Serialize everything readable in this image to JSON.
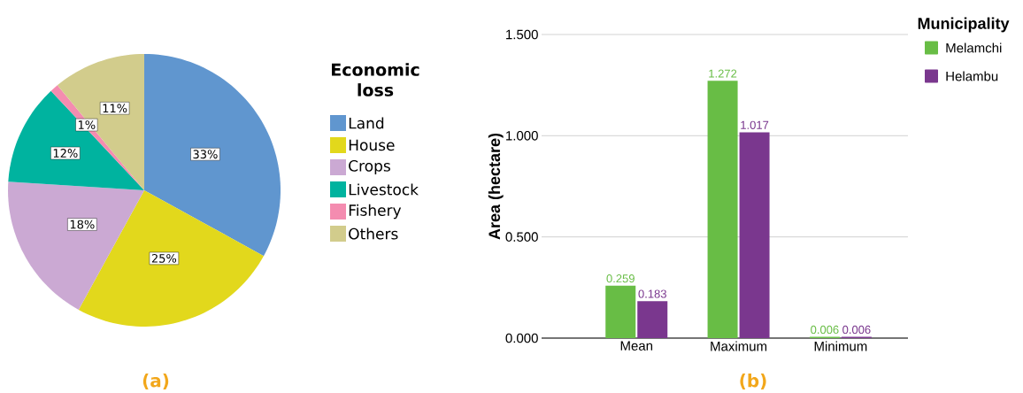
{
  "chart_data": [
    {
      "type": "pie",
      "categories": [
        "Land",
        "House",
        "Crops",
        "Livestock",
        "Fishery",
        "Others"
      ],
      "values": [
        33,
        25,
        18,
        12,
        1,
        11
      ],
      "colors": [
        "#6096cf",
        "#e2d81c",
        "#cba9d3",
        "#00b39f",
        "#f48cb0",
        "#d2cc8c"
      ],
      "value_labels": [
        "33%",
        "25%",
        "18%",
        "12%",
        "1%",
        "11%"
      ],
      "legend_title": "Economic loss",
      "legend": "right",
      "annotations": [
        "(a)"
      ]
    },
    {
      "type": "bar",
      "categories": [
        "Mean",
        "Maximum",
        "Minimum"
      ],
      "series": [
        {
          "name": "Melamchi",
          "color": "#68bd45",
          "values": [
            0.259,
            1.272,
            0.006
          ]
        },
        {
          "name": "Helambu",
          "color": "#7a378e",
          "values": [
            0.183,
            1.017,
            0.006
          ]
        }
      ],
      "ylim": [
        0,
        1.5
      ],
      "yticks": [
        {
          "value": 0,
          "label": "0.000"
        },
        {
          "value": 0.5,
          "label": "0.500"
        },
        {
          "value": 1,
          "label": "1.000"
        },
        {
          "value": 1.5,
          "label": "1.500"
        }
      ],
      "ylabel": "Area (hectare)",
      "legend_title": "Municipality",
      "legend": "top right",
      "grid": "y",
      "data_labels": true,
      "annotations": [
        "(b)"
      ]
    }
  ]
}
